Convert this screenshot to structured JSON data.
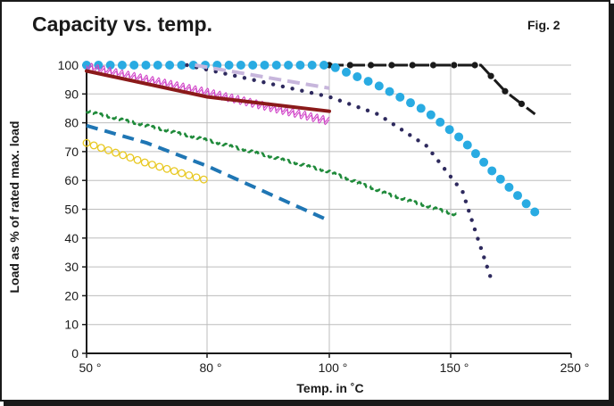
{
  "header": {
    "title": "Capacity vs. temp.",
    "figure": "Fig. 2"
  },
  "chart_data": {
    "type": "line",
    "title": "Capacity vs. temp.",
    "xlabel": "Temp. in ˚C",
    "ylabel": "Load as % of rated max. load",
    "ylim": [
      0,
      100
    ],
    "yticks": [
      "0",
      "10",
      "20",
      "30",
      "40",
      "50",
      "60",
      "70",
      "80",
      "90",
      "100"
    ],
    "xticks": [
      "50 °",
      "80 °",
      "100 °",
      "150 °",
      "250 °"
    ],
    "grid": true,
    "series": [
      {
        "style": "dash-dot-black",
        "color": "#1a1a1a",
        "points": [
          [
            100,
            100
          ],
          [
            175,
            100
          ],
          [
            195,
            91
          ],
          [
            220,
            83
          ]
        ]
      },
      {
        "style": "large-dots-cyan",
        "color": "#29abe2",
        "points": [
          [
            50,
            100
          ],
          [
            100,
            100
          ],
          [
            120,
            93
          ],
          [
            140,
            84
          ],
          [
            160,
            74
          ],
          [
            185,
            63
          ],
          [
            220,
            49
          ]
        ]
      },
      {
        "style": "small-dots-navy",
        "color": "#2e2a5e",
        "points": [
          [
            75,
            100
          ],
          [
            100,
            89
          ],
          [
            120,
            83
          ],
          [
            140,
            72
          ],
          [
            160,
            56
          ],
          [
            170,
            43
          ],
          [
            185,
            24
          ]
        ]
      },
      {
        "style": "dashed-lavender",
        "color": "#c7b6dc",
        "points": [
          [
            77,
            100
          ],
          [
            100,
            92
          ]
        ]
      },
      {
        "style": "wavy-magenta",
        "color": "#d146c8",
        "points": [
          [
            50,
            100
          ],
          [
            80,
            91
          ],
          [
            100,
            81
          ]
        ]
      },
      {
        "style": "solid-maroon",
        "color": "#8b1a1a",
        "points": [
          [
            50,
            98
          ],
          [
            80,
            89
          ],
          [
            100,
            84
          ]
        ]
      },
      {
        "style": "dashed-green",
        "color": "#1f8a3a",
        "points": [
          [
            50,
            84
          ],
          [
            80,
            74
          ],
          [
            100,
            63
          ],
          [
            125,
            55
          ],
          [
            155,
            48
          ]
        ]
      },
      {
        "style": "dashed-blue",
        "color": "#1f76b4",
        "points": [
          [
            50,
            79
          ],
          [
            65,
            73
          ],
          [
            80,
            65
          ],
          [
            100,
            46
          ]
        ]
      },
      {
        "style": "open-circles-yellow",
        "color": "#e8c820",
        "points": [
          [
            50,
            73
          ],
          [
            65,
            66
          ],
          [
            80,
            60
          ]
        ]
      }
    ]
  }
}
